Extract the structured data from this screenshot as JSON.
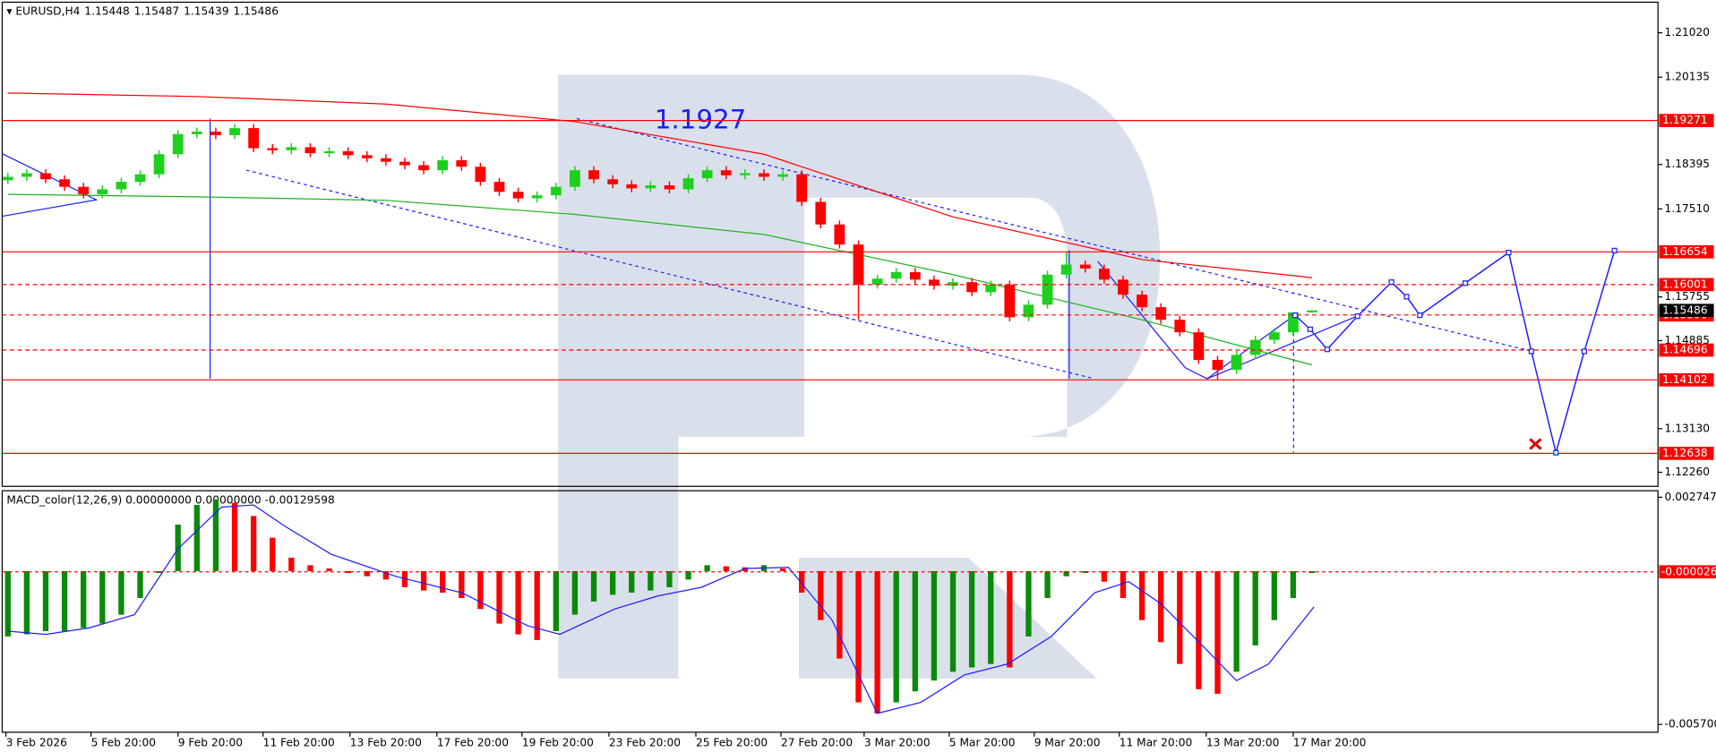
{
  "chart_data": [
    {
      "type": "candlestick",
      "symbol": "EURUSD,H4",
      "annotation": "1.1927",
      "up_color": "#1fcf1f",
      "down_color": "#ff0000",
      "open": [
        1.1808,
        1.1815,
        1.1822,
        1.181,
        1.1795,
        1.178,
        1.179,
        1.1805,
        1.182,
        1.186,
        1.19,
        1.1905,
        1.1898,
        1.1912,
        1.1872,
        1.1868,
        1.1874,
        1.1862,
        1.1866,
        1.1858,
        1.1852,
        1.1845,
        1.1838,
        1.1828,
        1.1848,
        1.1835,
        1.1805,
        1.1785,
        1.1772,
        1.1778,
        1.1795,
        1.1828,
        1.181,
        1.18,
        1.1792,
        1.1798,
        1.179,
        1.1812,
        1.1828,
        1.1818,
        1.1822,
        1.1815,
        1.182,
        1.1765,
        1.172,
        1.168,
        1.16,
        1.1612,
        1.1625,
        1.161,
        1.1598,
        1.1605,
        1.1585,
        1.16,
        1.1535,
        1.156,
        1.162,
        1.164,
        1.1632,
        1.161,
        1.158,
        1.1555,
        1.153,
        1.1505,
        1.145,
        1.143,
        1.146,
        1.149,
        1.1505,
        1.15448
      ],
      "high": [
        1.1823,
        1.183,
        1.183,
        1.1818,
        1.1803,
        1.1798,
        1.1813,
        1.1828,
        1.1868,
        1.1908,
        1.1913,
        1.1913,
        1.192,
        1.192,
        1.188,
        1.1882,
        1.1882,
        1.1874,
        1.1874,
        1.1866,
        1.186,
        1.1853,
        1.1846,
        1.1856,
        1.1856,
        1.1843,
        1.1813,
        1.1793,
        1.1786,
        1.1803,
        1.1836,
        1.1836,
        1.1818,
        1.1808,
        1.1806,
        1.1806,
        1.182,
        1.1836,
        1.1836,
        1.183,
        1.183,
        1.1828,
        1.1828,
        1.1773,
        1.1728,
        1.1688,
        1.162,
        1.1633,
        1.1633,
        1.1618,
        1.1613,
        1.1613,
        1.1608,
        1.1608,
        1.1568,
        1.1628,
        1.1665,
        1.1648,
        1.164,
        1.1618,
        1.1588,
        1.1563,
        1.1538,
        1.1513,
        1.1458,
        1.1468,
        1.1498,
        1.1513,
        1.1538,
        1.15487
      ],
      "low": [
        1.18,
        1.1807,
        1.1802,
        1.1787,
        1.1772,
        1.1772,
        1.1782,
        1.1797,
        1.1812,
        1.1852,
        1.1892,
        1.189,
        1.189,
        1.1864,
        1.186,
        1.186,
        1.1854,
        1.1854,
        1.185,
        1.1844,
        1.1837,
        1.183,
        1.182,
        1.182,
        1.1827,
        1.1797,
        1.1777,
        1.1764,
        1.1764,
        1.177,
        1.1787,
        1.1802,
        1.1792,
        1.1784,
        1.1784,
        1.1782,
        1.1782,
        1.1804,
        1.181,
        1.181,
        1.1807,
        1.1807,
        1.1757,
        1.1712,
        1.1672,
        1.153,
        1.1592,
        1.1604,
        1.1602,
        1.159,
        1.159,
        1.1577,
        1.1577,
        1.1527,
        1.1527,
        1.1552,
        1.1612,
        1.1624,
        1.1602,
        1.1572,
        1.1547,
        1.1522,
        1.1497,
        1.1442,
        1.141,
        1.1422,
        1.1452,
        1.1482,
        1.1497,
        1.15439
      ],
      "close": [
        1.1815,
        1.1822,
        1.181,
        1.1795,
        1.178,
        1.179,
        1.1805,
        1.182,
        1.186,
        1.19,
        1.1905,
        1.1898,
        1.1912,
        1.1872,
        1.1868,
        1.1874,
        1.1862,
        1.1866,
        1.1858,
        1.1852,
        1.1845,
        1.1838,
        1.1828,
        1.1848,
        1.1835,
        1.1805,
        1.1785,
        1.1772,
        1.1778,
        1.1795,
        1.1828,
        1.181,
        1.18,
        1.1792,
        1.1798,
        1.179,
        1.1812,
        1.1828,
        1.1818,
        1.1822,
        1.1815,
        1.182,
        1.1765,
        1.172,
        1.168,
        1.16,
        1.1612,
        1.1625,
        1.161,
        1.1598,
        1.1605,
        1.1585,
        1.16,
        1.1535,
        1.156,
        1.162,
        1.164,
        1.1632,
        1.161,
        1.158,
        1.1555,
        1.153,
        1.1505,
        1.145,
        1.143,
        1.146,
        1.149,
        1.1505,
        1.15448,
        1.15486
      ],
      "lines": [
        {
          "color": "#ff0000",
          "x": [
            0,
            10,
            20,
            30,
            40,
            50,
            60,
            69
          ],
          "values": [
            1.1982,
            1.1975,
            1.196,
            1.1925,
            1.186,
            1.1735,
            1.165,
            1.1614
          ]
        },
        {
          "color": "#22b022",
          "x": [
            0,
            10,
            20,
            30,
            40,
            50,
            60,
            69
          ],
          "values": [
            1.178,
            1.1775,
            1.1768,
            1.174,
            1.17,
            1.162,
            1.153,
            1.144
          ]
        }
      ],
      "forecast": {
        "color": "#1c1cff",
        "x": [
          68.1,
          68.9,
          69.8,
          71.4,
          73.2,
          74,
          74.7,
          77.1,
          79.4,
          80.6,
          81.9,
          83.4,
          85
        ],
        "values": [
          1.1539,
          1.1511,
          1.1471,
          1.1537,
          1.1605,
          1.1576,
          1.1539,
          1.1603,
          1.1664,
          1.1467,
          1.1265,
          1.1467,
          1.1668
        ]
      },
      "level_color": "#ff0000",
      "solid_levels": [
        1.19271,
        1.16654,
        1.14102,
        1.12638
      ],
      "dashed_levels": [
        1.16001,
        1.15396,
        1.14696
      ],
      "xlim": [
        -0.3,
        87.3
      ],
      "xticks": [
        {
          "value": -0.1,
          "label": "3 Feb 2026"
        },
        {
          "value": 4.4,
          "label": "5 Feb 20:00"
        },
        {
          "value": 9.0,
          "label": "9 Feb 20:00"
        },
        {
          "value": 13.5,
          "label": "11 Feb 20:00"
        },
        {
          "value": 18.1,
          "label": "13 Feb 20:00"
        },
        {
          "value": 22.7,
          "label": "17 Feb 20:00"
        },
        {
          "value": 27.2,
          "label": "19 Feb 20:00"
        },
        {
          "value": 31.8,
          "label": "23 Feb 20:00"
        },
        {
          "value": 36.4,
          "label": "25 Feb 20:00"
        },
        {
          "value": 40.9,
          "label": "27 Feb 20:00"
        },
        {
          "value": 45.3,
          "label": "3 Mar 20:00"
        },
        {
          "value": 49.8,
          "label": "5 Mar 20:00"
        },
        {
          "value": 54.3,
          "label": "9 Mar 20:00"
        },
        {
          "value": 58.8,
          "label": "11 Mar 20:00"
        },
        {
          "value": 63.4,
          "label": "13 Mar 20:00"
        },
        {
          "value": 68.0,
          "label": "17 Mar 20:00"
        }
      ],
      "ylim": [
        1.1198,
        1.2163
      ],
      "yticks": [
        {
          "value": 1.2102,
          "label": "1.21020"
        },
        1.20135,
        1.18395,
        {
          "value": 1.1751,
          "label": "1.17510"
        },
        1.15755,
        1.14885,
        {
          "value": 1.1313,
          "label": "1.13130"
        },
        {
          "value": 1.1226,
          "label": "1.12260"
        }
      ]
    },
    {
      "type": "bar",
      "title": "MACD_color(12,26,9) 0.00000000 0.00000000 -0.00129598",
      "up_color": "#0a8a0a",
      "down_color": "#ff0000",
      "values": [
        -0.00243,
        -0.00235,
        -0.00223,
        -0.00223,
        -0.00211,
        -0.00195,
        -0.00162,
        -0.001,
        -7e-05,
        0.00173,
        0.00246,
        0.00267,
        0.00254,
        0.00205,
        0.00124,
        0.0005,
        0.00022,
        0.0001,
        -7e-05,
        -0.00019,
        -0.00031,
        -0.0006,
        -0.00072,
        -0.0008,
        -0.001,
        -0.00141,
        -0.00195,
        -0.00235,
        -0.00256,
        -0.00223,
        -0.00162,
        -0.00113,
        -0.00088,
        -0.0008,
        -0.00072,
        -0.0006,
        -0.00031,
        0.00022,
        0.00018,
        0.00014,
        0.00022,
        0.0001,
        -0.0008,
        -0.00182,
        -0.00325,
        -0.00488,
        -0.00529,
        -0.00488,
        -0.00447,
        -0.00407,
        -0.00374,
        -0.00358,
        -0.00345,
        -0.00358,
        -0.00243,
        -0.001,
        -0.00019,
        -7e-05,
        -0.00039,
        -0.001,
        -0.00182,
        -0.00264,
        -0.00345,
        -0.00439,
        -0.00456,
        -0.00374,
        -0.00276,
        -0.00182,
        -0.001,
        -7e-05
      ],
      "signal": {
        "color": "#1c1cff",
        "x": [
          0,
          2,
          4.3,
          6.7,
          9,
          11.3,
          13,
          14.7,
          17.1,
          20.5,
          24,
          27.5,
          29.2,
          32.1,
          34.4,
          36.7,
          39,
          41.3,
          43.6,
          46,
          48.3,
          50.6,
          52.9,
          55.2,
          57.5,
          59.3,
          61,
          63.3,
          65,
          66.7,
          69.1
        ],
        "values": [
          -0.00223,
          -0.00235,
          -0.00211,
          -0.00162,
          0.00083,
          0.00238,
          0.00246,
          0.00165,
          0.00063,
          -0.00019,
          -0.0008,
          -0.00203,
          -0.00235,
          -0.00141,
          -0.00092,
          -0.0006,
          0.0001,
          0.00014,
          -0.00182,
          -0.00529,
          -0.00488,
          -0.00386,
          -0.00345,
          -0.00243,
          -0.0008,
          -0.00039,
          -0.00121,
          -0.00284,
          -0.00407,
          -0.00345,
          -0.00133
        ]
      },
      "level": -2.6e-05,
      "level_color": "#ff0000",
      "ylim": [
        -0.00599,
        0.00299
      ],
      "yticks": [
        0.0027473,
        -0.0057009
      ]
    }
  ]
}
